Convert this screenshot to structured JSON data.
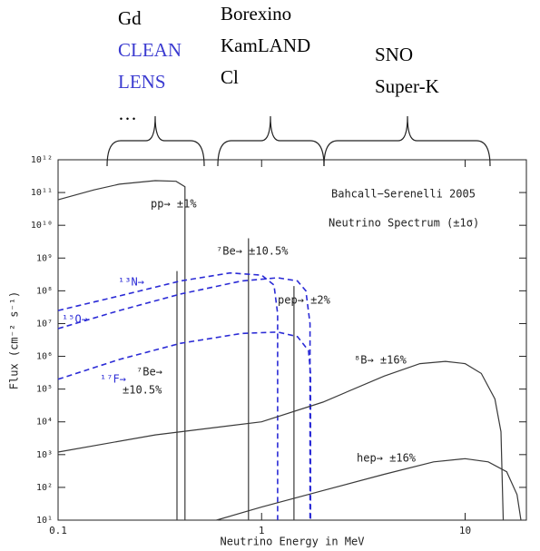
{
  "chart_data": {
    "type": "line",
    "title": "Bahcall−Serenelli 2005",
    "subtitle": "Neutrino Spectrum (±1σ)",
    "x_label": "Neutrino Energy in MeV",
    "y_label": "Flux (cm⁻² s⁻¹)",
    "log_x": true,
    "log_y": true,
    "xlim": [
      0.1,
      20
    ],
    "ylim": [
      10,
      1000000000000
    ],
    "xticks": [
      0.1,
      1,
      10
    ],
    "yticks": [
      {
        "value": 10,
        "label": "10¹"
      },
      {
        "value": 100,
        "label": "10²"
      },
      {
        "value": 1000,
        "label": "10³"
      },
      {
        "value": 10000,
        "label": "10⁴"
      },
      {
        "value": 100000,
        "label": "10⁵"
      },
      {
        "value": 1000000,
        "label": "10⁶"
      },
      {
        "value": 10000000,
        "label": "10⁷"
      },
      {
        "value": 100000000,
        "label": "10⁸"
      },
      {
        "value": 1000000000,
        "label": "10⁹"
      },
      {
        "value": 10000000000,
        "label": "10¹⁰"
      },
      {
        "value": 100000000000,
        "label": "10¹¹"
      },
      {
        "value": 1000000000000,
        "label": "10¹²"
      }
    ],
    "series": [
      {
        "color": "#3a3a3a",
        "dashed": false,
        "x": [
          0.1,
          0.15,
          0.2,
          0.3,
          0.38,
          0.42,
          0.42
        ],
        "values": [
          60000000000,
          120000000000,
          180000000000,
          230000000000,
          220000000000,
          150000000000,
          10
        ]
      },
      {
        "color": "#3a3a3a",
        "dashed": false,
        "x": [
          0.384,
          0.384
        ],
        "values": [
          10,
          400000000
        ]
      },
      {
        "color": "#3a3a3a",
        "dashed": false,
        "x": [
          0.862,
          0.862
        ],
        "values": [
          10,
          4000000000
        ]
      },
      {
        "color": "#3a3a3a",
        "dashed": false,
        "x": [
          1.442,
          1.442
        ],
        "values": [
          10,
          140000000
        ]
      },
      {
        "color": "#2b2bd6",
        "dashed": true,
        "x": [
          0.1,
          0.2,
          0.4,
          0.7,
          1.0,
          1.15,
          1.199,
          1.199
        ],
        "values": [
          25000000,
          70000000,
          200000000,
          350000000,
          300000000,
          150000000,
          20000000,
          10
        ]
      },
      {
        "color": "#2b2bd6",
        "dashed": true,
        "x": [
          0.1,
          0.2,
          0.4,
          0.8,
          1.2,
          1.5,
          1.65,
          1.73,
          1.73
        ],
        "values": [
          7000000,
          25000000,
          80000000,
          200000000,
          250000000,
          200000000,
          100000000,
          10000000,
          10
        ]
      },
      {
        "color": "#2b2bd6",
        "dashed": true,
        "x": [
          0.1,
          0.2,
          0.4,
          0.8,
          1.2,
          1.5,
          1.7,
          1.74,
          1.74
        ],
        "values": [
          200000,
          800000,
          2500000,
          5000000,
          5500000,
          4000000,
          1500000,
          300000,
          10
        ]
      },
      {
        "color": "#3a3a3a",
        "dashed": false,
        "x": [
          0.1,
          0.3,
          1,
          2,
          4,
          6,
          8,
          10,
          12,
          14,
          15,
          15.4
        ],
        "values": [
          1200,
          4000,
          10000,
          40000,
          250000,
          600000,
          700000,
          600000,
          300000,
          50000,
          5000,
          10
        ]
      },
      {
        "color": "#3a3a3a",
        "dashed": false,
        "x": [
          0.6,
          1,
          2,
          4,
          7,
          10,
          13,
          16,
          18,
          18.8
        ],
        "values": [
          10,
          25,
          80,
          250,
          600,
          750,
          600,
          300,
          60,
          10
        ]
      }
    ],
    "annotations": [
      {
        "text": "pp→ ±1%",
        "color": "#222"
      },
      {
        "text": "⁷Be→ ±10.5%",
        "color": "#222"
      },
      {
        "text": "pep→ ±2%",
        "color": "#222"
      },
      {
        "text": "¹³N→",
        "color": "#2b2bd6"
      },
      {
        "text": "¹⁵O→",
        "color": "#2b2bd6"
      },
      {
        "text": "¹⁷F→",
        "color": "#2b2bd6"
      },
      {
        "text": "⁷Be→",
        "color": "#222"
      },
      {
        "text": "±10.5%",
        "color": "#222"
      },
      {
        "text": "⁸B→ ±16%",
        "color": "#222"
      },
      {
        "text": "hep→ ±16%",
        "color": "#222"
      }
    ],
    "experiments": [
      [
        {
          "text": "Gd",
          "color": "#000"
        },
        {
          "text": "CLEAN",
          "color": "#3a3ad0"
        },
        {
          "text": "LENS",
          "color": "#3a3ad0"
        },
        {
          "text": "…",
          "color": "#000"
        }
      ],
      [
        {
          "text": "Borexino",
          "color": "#000"
        },
        {
          "text": "KamLAND",
          "color": "#000"
        },
        {
          "text": "Cl",
          "color": "#000"
        }
      ],
      [
        {
          "text": "SNO",
          "color": "#000"
        },
        {
          "text": "Super-K",
          "color": "#000"
        }
      ]
    ]
  }
}
